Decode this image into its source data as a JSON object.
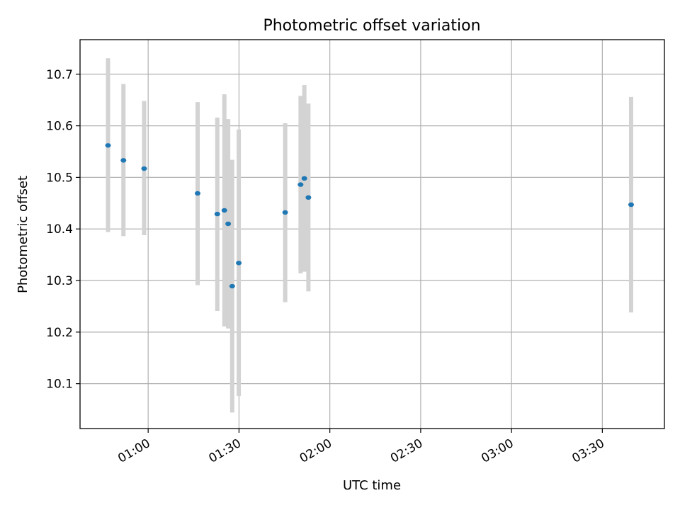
{
  "chart_data": {
    "type": "scatter",
    "title": "Photometric offset variation",
    "xlabel": "UTC time",
    "ylabel": "Photometric offset",
    "x_axis": {
      "kind": "time",
      "min": "00:37:30",
      "max": "03:50:30",
      "ticks": [
        "01:00",
        "01:30",
        "02:00",
        "02:30",
        "03:00",
        "03:30"
      ]
    },
    "y_axis": {
      "min": 10.013,
      "max": 10.767,
      "ticks": [
        10.1,
        10.2,
        10.3,
        10.4,
        10.5,
        10.6,
        10.7
      ],
      "tick_labels": [
        "10.1",
        "10.2",
        "10.3",
        "10.4",
        "10.5",
        "10.6",
        "10.7"
      ]
    },
    "grid": true,
    "marker_color": "#1f77b4",
    "errorbar_color": "#d3d3d3",
    "points": [
      {
        "x": "00:46:45",
        "y": 10.562,
        "ylow": 10.394,
        "yhigh": 10.731
      },
      {
        "x": "00:51:50",
        "y": 10.533,
        "ylow": 10.386,
        "yhigh": 10.681
      },
      {
        "x": "00:58:40",
        "y": 10.517,
        "ylow": 10.388,
        "yhigh": 10.648
      },
      {
        "x": "01:16:20",
        "y": 10.469,
        "ylow": 10.291,
        "yhigh": 10.646
      },
      {
        "x": "01:22:50",
        "y": 10.429,
        "ylow": 10.241,
        "yhigh": 10.616
      },
      {
        "x": "01:25:10",
        "y": 10.436,
        "ylow": 10.211,
        "yhigh": 10.661
      },
      {
        "x": "01:26:25",
        "y": 10.41,
        "ylow": 10.207,
        "yhigh": 10.613
      },
      {
        "x": "01:27:45",
        "y": 10.289,
        "ylow": 10.044,
        "yhigh": 10.534
      },
      {
        "x": "01:29:55",
        "y": 10.334,
        "ylow": 10.076,
        "yhigh": 10.593
      },
      {
        "x": "01:45:15",
        "y": 10.432,
        "ylow": 10.258,
        "yhigh": 10.605
      },
      {
        "x": "01:50:20",
        "y": 10.486,
        "ylow": 10.314,
        "yhigh": 10.658
      },
      {
        "x": "01:51:35",
        "y": 10.498,
        "ylow": 10.317,
        "yhigh": 10.679
      },
      {
        "x": "01:52:55",
        "y": 10.461,
        "ylow": 10.279,
        "yhigh": 10.643
      },
      {
        "x": "03:39:30",
        "y": 10.447,
        "ylow": 10.238,
        "yhigh": 10.656
      }
    ]
  }
}
